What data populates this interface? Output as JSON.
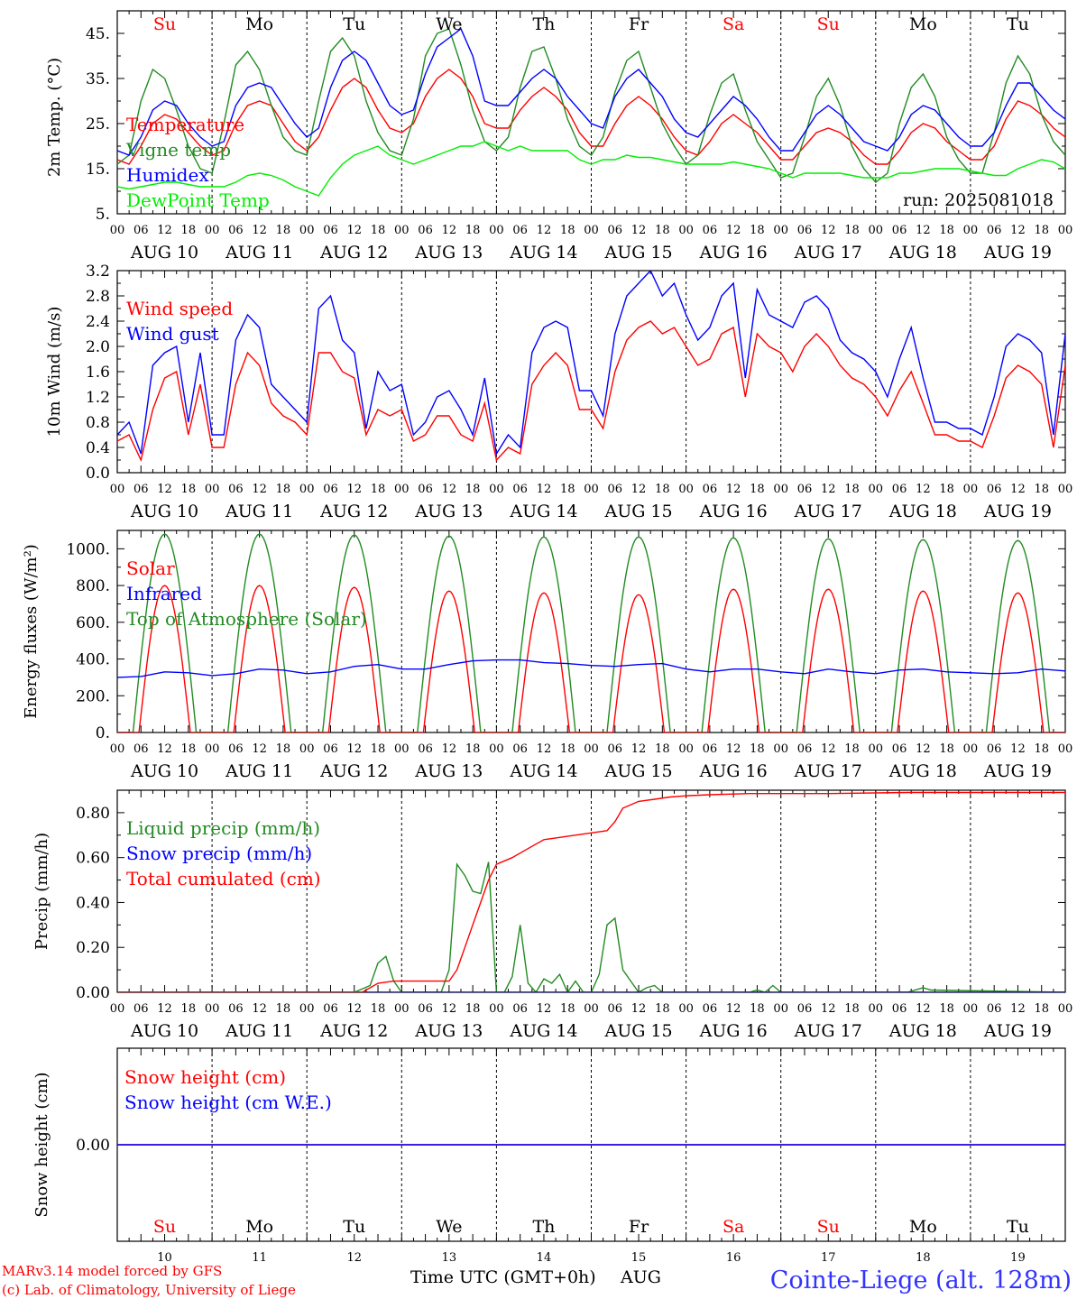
{
  "days": [
    "AUG 10",
    "AUG 11",
    "AUG 12",
    "AUG 13",
    "AUG 14",
    "AUG 15",
    "AUG 16",
    "AUG 17",
    "AUG 18",
    "AUG 19"
  ],
  "weekdays": [
    {
      "label": "Su",
      "color": "#ff0000"
    },
    {
      "label": "Mo",
      "color": "#000000"
    },
    {
      "label": "Tu",
      "color": "#000000"
    },
    {
      "label": "We",
      "color": "#000000"
    },
    {
      "label": "Th",
      "color": "#000000"
    },
    {
      "label": "Fr",
      "color": "#000000"
    },
    {
      "label": "Sa",
      "color": "#ff0000"
    },
    {
      "label": "Su",
      "color": "#ff0000"
    },
    {
      "label": "Mo",
      "color": "#000000"
    },
    {
      "label": "Tu",
      "color": "#000000"
    }
  ],
  "day_numbers": [
    "10",
    "11",
    "12",
    "13",
    "14",
    "15",
    "16",
    "17",
    "18",
    "19"
  ],
  "hour_ticks": [
    "00",
    "06",
    "12",
    "18"
  ],
  "run_label": "run: 2025081018",
  "footer": {
    "model": "MARv3.14 model forced by GFS",
    "credit": "(c) Lab. of Climatology, University of Liege",
    "xlabel": "Time UTC (GMT+0h)",
    "month": "AUG",
    "station": "Cointe-Liege (alt. 128m)"
  },
  "chart_data": [
    {
      "type": "line",
      "ylabel": "2m Temp. (°C)",
      "ylim": [
        5,
        50
      ],
      "yticks": [
        5,
        15,
        25,
        35,
        45
      ],
      "ytick_labels": [
        "5.",
        "15.",
        "25.",
        "35.",
        "45."
      ],
      "x_hours": [
        0,
        3,
        6,
        9,
        12,
        15,
        18,
        21,
        24,
        27,
        30,
        33,
        36,
        39,
        42,
        45,
        48,
        51,
        54,
        57,
        60,
        63,
        66,
        69,
        72,
        75,
        78,
        81,
        84,
        87,
        90,
        93,
        96,
        99,
        102,
        105,
        108,
        111,
        114,
        117,
        120,
        123,
        126,
        129,
        132,
        135,
        138,
        141,
        144,
        147,
        150,
        153,
        156,
        159,
        162,
        165,
        168,
        171,
        174,
        177,
        180,
        183,
        186,
        189,
        192,
        195,
        198,
        201,
        204,
        207,
        210,
        213,
        216,
        219,
        222,
        225,
        228,
        231,
        234,
        237,
        240
      ],
      "series": [
        {
          "name": "Temperature",
          "color": "#ff0000",
          "values": [
            17,
            16,
            20,
            25,
            27,
            26,
            23,
            20,
            18,
            19,
            25,
            29,
            30,
            29,
            25,
            21,
            19,
            22,
            28,
            33,
            35,
            33,
            28,
            24,
            23,
            25,
            31,
            35,
            37,
            35,
            31,
            25,
            24,
            24,
            28,
            31,
            33,
            31,
            28,
            23,
            20,
            20,
            25,
            29,
            31,
            29,
            26,
            22,
            19,
            18,
            21,
            25,
            27,
            25,
            23,
            20,
            17,
            17,
            20,
            23,
            24,
            23,
            21,
            18,
            16,
            16,
            19,
            23,
            25,
            24,
            21,
            19,
            17,
            17,
            20,
            26,
            30,
            29,
            27,
            24,
            22
          ]
        },
        {
          "name": "Vigne temp",
          "color": "#228b22",
          "values": [
            16,
            18,
            30,
            37,
            35,
            28,
            20,
            15,
            14,
            25,
            38,
            41,
            37,
            29,
            22,
            19,
            18,
            30,
            41,
            44,
            40,
            30,
            23,
            19,
            18,
            26,
            40,
            45,
            46,
            38,
            28,
            21,
            19,
            22,
            33,
            41,
            42,
            35,
            26,
            20,
            18,
            22,
            32,
            39,
            41,
            33,
            25,
            20,
            16,
            18,
            27,
            34,
            36,
            28,
            21,
            17,
            13,
            14,
            22,
            31,
            35,
            29,
            20,
            15,
            12,
            14,
            25,
            33,
            36,
            31,
            22,
            17,
            14,
            14,
            23,
            34,
            40,
            36,
            27,
            21,
            18
          ]
        },
        {
          "name": "Humidex",
          "color": "#0000ff",
          "values": [
            19,
            18,
            22,
            28,
            30,
            29,
            25,
            22,
            20,
            21,
            29,
            33,
            34,
            33,
            29,
            25,
            22,
            24,
            33,
            39,
            41,
            39,
            34,
            29,
            27,
            28,
            36,
            42,
            44,
            46,
            40,
            30,
            29,
            29,
            32,
            35,
            37,
            35,
            31,
            28,
            25,
            24,
            31,
            35,
            37,
            34,
            31,
            26,
            23,
            22,
            25,
            28,
            31,
            29,
            26,
            22,
            19,
            19,
            23,
            27,
            29,
            27,
            24,
            21,
            20,
            19,
            22,
            27,
            29,
            28,
            25,
            22,
            20,
            20,
            23,
            29,
            34,
            34,
            31,
            28,
            26
          ]
        },
        {
          "name": "DewPoint Temp",
          "color": "#00ee00",
          "values": [
            11,
            10.5,
            11,
            11.5,
            12,
            12,
            11.5,
            11,
            11,
            11,
            12,
            13.5,
            14,
            13.5,
            12.5,
            11,
            10,
            9,
            13,
            16,
            18,
            19,
            20,
            18,
            17,
            16,
            17,
            18,
            19,
            20,
            20,
            21,
            20,
            19,
            20,
            19,
            19,
            19,
            19,
            17,
            16,
            17,
            17,
            18,
            17.5,
            17.5,
            17,
            16.5,
            16,
            16,
            16,
            16,
            16.5,
            16,
            15.5,
            15,
            14,
            13,
            14,
            14,
            14,
            14,
            13.5,
            13,
            13,
            13,
            14,
            14,
            14.5,
            15,
            15,
            15,
            14.5,
            14,
            13.5,
            13.5,
            15,
            16,
            17,
            16.5,
            15
          ]
        }
      ],
      "legend": [
        "Temperature",
        "Vigne temp",
        "Humidex",
        "DewPoint Temp"
      ],
      "legend_position": "left"
    },
    {
      "type": "line",
      "ylabel": "10m Wind (m/s)",
      "ylim": [
        0,
        3.2
      ],
      "yticks": [
        0,
        0.4,
        0.8,
        1.2,
        1.6,
        2.0,
        2.4,
        2.8,
        3.2
      ],
      "ytick_labels": [
        "0.0",
        "0.4",
        "0.8",
        "1.2",
        "1.6",
        "2.0",
        "2.4",
        "2.8",
        "3.2"
      ],
      "x_hours": [
        0,
        3,
        6,
        9,
        12,
        15,
        18,
        21,
        24,
        27,
        30,
        33,
        36,
        39,
        42,
        45,
        48,
        51,
        54,
        57,
        60,
        63,
        66,
        69,
        72,
        75,
        78,
        81,
        84,
        87,
        90,
        93,
        96,
        99,
        102,
        105,
        108,
        111,
        114,
        117,
        120,
        123,
        126,
        129,
        132,
        135,
        138,
        141,
        144,
        147,
        150,
        153,
        156,
        159,
        162,
        165,
        168,
        171,
        174,
        177,
        180,
        183,
        186,
        189,
        192,
        195,
        198,
        201,
        204,
        207,
        210,
        213,
        216,
        219,
        222,
        225,
        228,
        231,
        234,
        237,
        240
      ],
      "series": [
        {
          "name": "Wind speed",
          "color": "#ff0000",
          "values": [
            0.5,
            0.6,
            0.2,
            1.0,
            1.5,
            1.6,
            0.6,
            1.4,
            0.4,
            0.4,
            1.4,
            1.9,
            1.7,
            1.1,
            0.9,
            0.8,
            0.6,
            1.9,
            1.9,
            1.6,
            1.5,
            0.6,
            1.0,
            0.9,
            1.0,
            0.5,
            0.6,
            0.9,
            0.9,
            0.6,
            0.5,
            1.1,
            0.2,
            0.4,
            0.3,
            1.4,
            1.7,
            1.9,
            1.7,
            1.0,
            1.0,
            0.7,
            1.6,
            2.1,
            2.3,
            2.4,
            2.2,
            2.3,
            2.0,
            1.7,
            1.8,
            2.2,
            2.3,
            1.2,
            2.2,
            2.0,
            1.9,
            1.6,
            2.0,
            2.2,
            2.0,
            1.7,
            1.5,
            1.4,
            1.2,
            0.9,
            1.3,
            1.6,
            1.1,
            0.6,
            0.6,
            0.5,
            0.5,
            0.4,
            0.9,
            1.5,
            1.7,
            1.6,
            1.4,
            0.4,
            1.7
          ]
        },
        {
          "name": "Wind gust",
          "color": "#0000ff",
          "values": [
            0.6,
            0.8,
            0.3,
            1.7,
            1.9,
            2.0,
            0.8,
            1.9,
            0.6,
            0.6,
            2.1,
            2.5,
            2.3,
            1.4,
            1.2,
            1.0,
            0.8,
            2.6,
            2.8,
            2.1,
            1.9,
            0.7,
            1.6,
            1.3,
            1.4,
            0.6,
            0.8,
            1.2,
            1.3,
            1.0,
            0.6,
            1.5,
            0.3,
            0.6,
            0.4,
            1.9,
            2.3,
            2.4,
            2.3,
            1.3,
            1.3,
            0.9,
            2.2,
            2.8,
            3.0,
            3.2,
            2.8,
            3.0,
            2.5,
            2.1,
            2.3,
            2.8,
            3.0,
            1.5,
            2.9,
            2.5,
            2.4,
            2.3,
            2.7,
            2.8,
            2.6,
            2.1,
            1.9,
            1.8,
            1.6,
            1.2,
            1.8,
            2.3,
            1.5,
            0.8,
            0.8,
            0.7,
            0.7,
            0.6,
            1.2,
            2.0,
            2.2,
            2.1,
            1.9,
            0.6,
            2.2
          ]
        }
      ],
      "legend": [
        "Wind speed",
        "Wind gust"
      ],
      "legend_position": "left"
    },
    {
      "type": "line",
      "ylabel": "Energy fluxes (W/m²)",
      "ylim": [
        0,
        1100
      ],
      "yticks": [
        0,
        200,
        400,
        600,
        800,
        1000
      ],
      "ytick_labels": [
        "0.",
        "200.",
        "400.",
        "600.",
        "800.",
        "1000."
      ],
      "daily_peak": {
        "Solar": [
          800,
          800,
          790,
          770,
          760,
          750,
          780,
          780,
          770,
          760
        ],
        "Top of Atmosphere (Solar)": [
          1080,
          1080,
          1075,
          1070,
          1065,
          1065,
          1060,
          1055,
          1050,
          1045
        ]
      },
      "x_hours": [
        0,
        6,
        12,
        18,
        24,
        30,
        36,
        42,
        48,
        54,
        60,
        66,
        72,
        78,
        84,
        90,
        96,
        102,
        108,
        114,
        120,
        126,
        132,
        138,
        144,
        150,
        156,
        162,
        168,
        174,
        180,
        186,
        192,
        198,
        204,
        210,
        216,
        222,
        228,
        234,
        240
      ],
      "series": [
        {
          "name": "Infrared",
          "color": "#0000ff",
          "values": [
            300,
            305,
            330,
            325,
            310,
            320,
            345,
            340,
            320,
            330,
            360,
            370,
            345,
            345,
            370,
            390,
            395,
            395,
            380,
            375,
            365,
            360,
            370,
            375,
            345,
            330,
            345,
            345,
            330,
            320,
            345,
            330,
            320,
            340,
            345,
            330,
            325,
            320,
            325,
            345,
            335
          ]
        }
      ],
      "legend": [
        "Solar",
        "Infrared",
        "Top of Atmosphere (Solar)"
      ],
      "legend_colors": [
        "#ff0000",
        "#0000ff",
        "#228b22"
      ],
      "legend_position": "left"
    },
    {
      "type": "line",
      "ylabel": "Precip (mm/h)",
      "ylim": [
        0,
        0.9
      ],
      "yticks": [
        0,
        0.2,
        0.4,
        0.6,
        0.8
      ],
      "ytick_labels": [
        "0.00",
        "0.20",
        "0.40",
        "0.60",
        "0.80"
      ],
      "series": [
        {
          "name": "Liquid precip (mm/h)",
          "color": "#228b22",
          "x": [
            0,
            60,
            64,
            66,
            68,
            70,
            72,
            82,
            84,
            86,
            88,
            90,
            92,
            94,
            96,
            98,
            100,
            102,
            104,
            106,
            108,
            110,
            112,
            114,
            116,
            118,
            120,
            122,
            124,
            126,
            128,
            130,
            132,
            134,
            136,
            138,
            140,
            142,
            144,
            160,
            162,
            164,
            166,
            168,
            200,
            204,
            206,
            240
          ],
          "values": [
            0,
            0,
            0.03,
            0.13,
            0.16,
            0.05,
            0,
            0,
            0.1,
            0.57,
            0.52,
            0.45,
            0.44,
            0.58,
            0,
            0,
            0.07,
            0.3,
            0.04,
            0,
            0.06,
            0.04,
            0.08,
            0,
            0.05,
            0,
            0,
            0.08,
            0.3,
            0.33,
            0.1,
            0.05,
            0,
            0.02,
            0.03,
            0,
            0,
            0,
            0,
            0,
            0.01,
            0,
            0.03,
            0,
            0,
            0.02,
            0.01,
            0
          ]
        },
        {
          "name": "Snow precip (mm/h)",
          "color": "#0000ff",
          "x": [
            0,
            240
          ],
          "values": [
            0,
            0
          ]
        },
        {
          "name": "Total cumulated (cm)",
          "color": "#ff0000",
          "x": [
            0,
            62,
            66,
            70,
            72,
            84,
            86,
            88,
            90,
            92,
            94,
            96,
            100,
            104,
            108,
            112,
            116,
            120,
            124,
            126,
            128,
            132,
            136,
            140,
            144,
            150,
            160,
            180,
            200,
            240
          ],
          "values": [
            0,
            0,
            0.04,
            0.05,
            0.05,
            0.05,
            0.1,
            0.2,
            0.3,
            0.4,
            0.5,
            0.57,
            0.6,
            0.64,
            0.68,
            0.69,
            0.7,
            0.71,
            0.72,
            0.76,
            0.82,
            0.85,
            0.86,
            0.87,
            0.875,
            0.88,
            0.885,
            0.885,
            0.89,
            0.89
          ]
        }
      ],
      "legend": [
        "Liquid precip (mm/h)",
        "Snow precip (mm/h)",
        "Total cumulated (cm)"
      ],
      "legend_position": "left"
    },
    {
      "type": "line",
      "ylabel": "Snow height (cm)",
      "ylim": [
        -1,
        1
      ],
      "yticks": [
        0
      ],
      "ytick_labels": [
        "0.00"
      ],
      "series": [
        {
          "name": "Snow height (cm)",
          "color": "#ff0000",
          "x": [
            0,
            240
          ],
          "values": [
            0,
            0
          ]
        },
        {
          "name": "Snow height (cm W.E.)",
          "color": "#0000ff",
          "x": [
            0,
            240
          ],
          "values": [
            0,
            0
          ]
        }
      ],
      "legend": [
        "Snow height (cm)",
        "Snow height (cm W.E.)"
      ],
      "legend_position": "left"
    }
  ]
}
